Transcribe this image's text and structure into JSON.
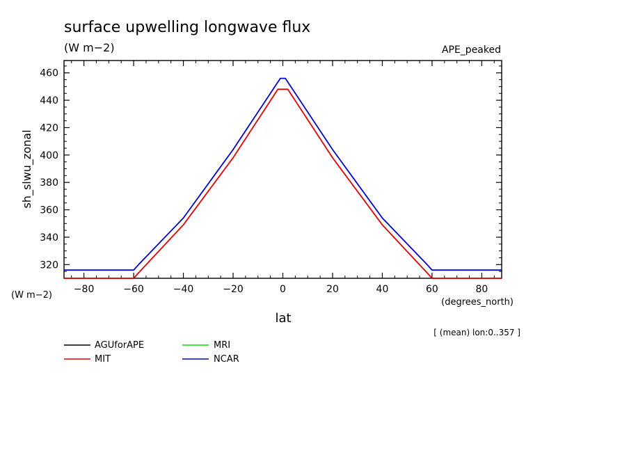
{
  "chart_data": {
    "type": "line",
    "title": "surface upwelling longwave flux",
    "subtitle": "(W m−2)",
    "experiment": "APE_peaked",
    "ylabel": "sh_slwu_zonal",
    "yunits": "(W m−2)",
    "xlabel": "lat",
    "xunits": "(degrees_north)",
    "note": "[ (mean) lon:0..357 ]",
    "xlim": [
      -88,
      88
    ],
    "ylim": [
      310,
      469
    ],
    "xticks": [
      -80,
      -60,
      -40,
      -20,
      0,
      20,
      40,
      60,
      80
    ],
    "xtick_labels": [
      "−80",
      "−60",
      "−40",
      "−20",
      "0",
      "20",
      "40",
      "60",
      "80"
    ],
    "yticks": [
      320,
      340,
      360,
      380,
      400,
      420,
      440,
      460
    ],
    "legend_position": "bottom-left",
    "series": [
      {
        "name": "AGUforAPE",
        "color": "#000000",
        "x": [],
        "y": []
      },
      {
        "name": "MIT",
        "color": "#e00000",
        "x": [
          -88,
          -60,
          -58,
          -40,
          -20,
          -2,
          2,
          20,
          40,
          58,
          60,
          88
        ],
        "y": [
          310,
          310,
          314,
          349,
          398,
          448,
          448,
          398,
          349,
          314,
          310,
          310
        ]
      },
      {
        "name": "MRI",
        "color": "#00e000",
        "x": [],
        "y": []
      },
      {
        "name": "NCAR",
        "color": "#0000cc",
        "x": [
          -88,
          -60,
          -58,
          -40,
          -20,
          -1,
          1,
          20,
          40,
          58,
          60,
          88
        ],
        "y": [
          316,
          316,
          320,
          354,
          404,
          456,
          456,
          404,
          354,
          320,
          316,
          316
        ]
      }
    ]
  }
}
